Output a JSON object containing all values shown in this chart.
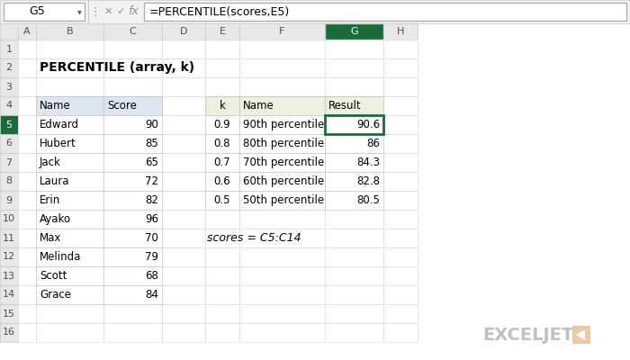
{
  "title": "PERCENTILE (array, k)",
  "formula_bar_cell": "G5",
  "formula_bar_formula": "=PERCENTILE(scores,E5)",
  "col_headers": [
    "A",
    "B",
    "C",
    "D",
    "E",
    "F",
    "G",
    "H"
  ],
  "row_headers": [
    "1",
    "2",
    "3",
    "4",
    "5",
    "6",
    "7",
    "8",
    "9",
    "10",
    "11",
    "12",
    "13",
    "14",
    "15",
    "16"
  ],
  "left_table_header": [
    "Name",
    "Score"
  ],
  "left_table_data": [
    [
      "Edward",
      "90"
    ],
    [
      "Hubert",
      "85"
    ],
    [
      "Jack",
      "65"
    ],
    [
      "Laura",
      "72"
    ],
    [
      "Erin",
      "82"
    ],
    [
      "Ayako",
      "96"
    ],
    [
      "Max",
      "70"
    ],
    [
      "Melinda",
      "79"
    ],
    [
      "Scott",
      "68"
    ],
    [
      "Grace",
      "84"
    ]
  ],
  "right_table_header": [
    "k",
    "Name",
    "Result"
  ],
  "right_table_data": [
    [
      "0.9",
      "90th percentile",
      "90.6"
    ],
    [
      "0.8",
      "80th percentile",
      "86"
    ],
    [
      "0.7",
      "70th percentile",
      "84.3"
    ],
    [
      "0.6",
      "60th percentile",
      "82.8"
    ],
    [
      "0.5",
      "50th percentile",
      "80.5"
    ]
  ],
  "note": "scores = C5:C14",
  "bg_color": "#ffffff",
  "toolbar_bg": "#f2f2f2",
  "header_bg": "#e8e8e8",
  "col_header_selected_bg": "#1a6b3a",
  "col_header_selected_fg": "#ffffff",
  "left_table_header_bg": "#dce6f1",
  "right_table_header_bg": "#ebf1de",
  "cell_border": "#c8c8c8",
  "selected_cell_border": "#1a6b3a",
  "grid_line": "#d8d8d8",
  "logo_text_color": "#c0c0c0",
  "logo_icon_color": "#f0c8a0"
}
